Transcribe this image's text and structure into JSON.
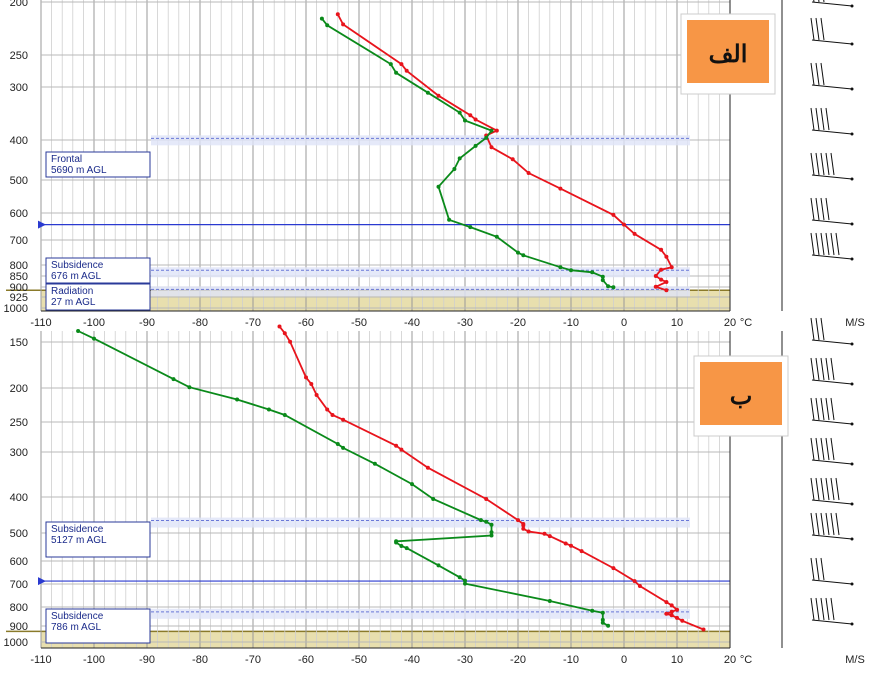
{
  "chart_data": [
    {
      "type": "line",
      "panel_label": "الف",
      "x_unit": "°C",
      "wind_unit": "M/S",
      "xlim": [
        -110,
        20
      ],
      "ylim": [
        1000,
        200
      ],
      "y_scale": "log",
      "x_ticks": [
        "-110",
        "-100",
        "-90",
        "-80",
        "-70",
        "-60",
        "-50",
        "-40",
        "-30",
        "-20",
        "-10",
        "0",
        "10",
        "20"
      ],
      "y_ticks": [
        "200",
        "250",
        "300",
        "400",
        "500",
        "600",
        "700",
        "800",
        "850",
        "900",
        "925",
        "1000"
      ],
      "grid": true,
      "layers": [
        {
          "name": "Frontal",
          "height": "5690 m AGL",
          "pressure": 440
        },
        {
          "name": "Subsidence",
          "height": "676 m AGL",
          "pressure": 830
        },
        {
          "name": "Radiation",
          "height": "27 m AGL",
          "pressure": 910
        }
      ],
      "marker_pressure": 660,
      "series": [
        {
          "color": "#e8141c",
          "points": [
            [
              -60,
              200
            ],
            [
              -59,
              206
            ],
            [
              -54,
              240
            ],
            [
              -53,
              252
            ],
            [
              -42,
              305
            ],
            [
              -41,
              315
            ],
            [
              -35,
              355
            ],
            [
              -29,
              390
            ],
            [
              -28,
              398
            ],
            [
              -24,
              420
            ],
            [
              -26,
              430
            ],
            [
              -25,
              455
            ],
            [
              -21,
              482
            ],
            [
              -18,
              515
            ],
            [
              -12,
              555
            ],
            [
              -2,
              630
            ],
            [
              0,
              660
            ],
            [
              2,
              690
            ],
            [
              7,
              745
            ],
            [
              8,
              770
            ],
            [
              9,
              810
            ],
            [
              7,
              820
            ],
            [
              6,
              845
            ],
            [
              7,
              860
            ],
            [
              8,
              870
            ],
            [
              6,
              890
            ],
            [
              8,
              905
            ]
          ]
        },
        {
          "color": "#0a8a1a",
          "points": [
            [
              -68,
              200
            ],
            [
              -64,
              214
            ],
            [
              -57,
              245
            ],
            [
              -56,
              253
            ],
            [
              -44,
              305
            ],
            [
              -43,
              318
            ],
            [
              -37,
              350
            ],
            [
              -31,
              385
            ],
            [
              -30,
              400
            ],
            [
              -25,
              420
            ],
            [
              -26,
              435
            ],
            [
              -28,
              452
            ],
            [
              -31,
              480
            ],
            [
              -32,
              505
            ],
            [
              -35,
              550
            ],
            [
              -33,
              645
            ],
            [
              -29,
              668
            ],
            [
              -24,
              700
            ],
            [
              -20,
              755
            ],
            [
              -19,
              765
            ],
            [
              -12,
              810
            ],
            [
              -10,
              822
            ],
            [
              -6,
              830
            ],
            [
              -4,
              848
            ],
            [
              -4,
              862
            ],
            [
              -3,
              888
            ],
            [
              -2,
              892
            ]
          ]
        }
      ]
    },
    {
      "type": "line",
      "panel_label": "ب",
      "x_unit": "°C",
      "wind_unit": "M/S",
      "xlim": [
        -110,
        20
      ],
      "ylim": [
        1000,
        150
      ],
      "y_scale": "log",
      "x_ticks": [
        "-110",
        "-100",
        "-90",
        "-80",
        "-70",
        "-60",
        "-50",
        "-40",
        "-30",
        "-20",
        "-10",
        "0",
        "10",
        "20"
      ],
      "y_ticks": [
        "150",
        "200",
        "250",
        "300",
        "400",
        "500",
        "600",
        "700",
        "800",
        "900",
        "1000"
      ],
      "grid": true,
      "layers": [
        {
          "name": "Subsidence",
          "height": "5127 m AGL",
          "pressure": 472
        },
        {
          "name": "Subsidence",
          "height": "786 m AGL",
          "pressure": 815
        }
      ],
      "marker_pressure": 670,
      "series": [
        {
          "color": "#e8141c",
          "points": [
            [
              -65,
              146
            ],
            [
              -64,
              152
            ],
            [
              -63,
              160
            ],
            [
              -60,
              198
            ],
            [
              -59,
              206
            ],
            [
              -58,
              220
            ],
            [
              -56,
              240
            ],
            [
              -55,
              248
            ],
            [
              -53,
              255
            ],
            [
              -43,
              298
            ],
            [
              -42,
              305
            ],
            [
              -37,
              340
            ],
            [
              -26,
              410
            ],
            [
              -20,
              465
            ],
            [
              -19,
              476
            ],
            [
              -19,
              480
            ],
            [
              -19,
              490
            ],
            [
              -18,
              498
            ],
            [
              -15,
              505
            ],
            [
              -14,
              512
            ],
            [
              -11,
              535
            ],
            [
              -10,
              542
            ],
            [
              -8,
              560
            ],
            [
              -2,
              620
            ],
            [
              2,
              670
            ],
            [
              3,
              690
            ],
            [
              8,
              760
            ],
            [
              9,
              775
            ],
            [
              10,
              795
            ],
            [
              9,
              805
            ],
            [
              8,
              815
            ],
            [
              9,
              822
            ],
            [
              10,
              835
            ],
            [
              11,
              850
            ],
            [
              15,
              895
            ]
          ]
        },
        {
          "color": "#0a8a1a",
          "points": [
            [
              -104,
              145
            ],
            [
              -103,
              150
            ],
            [
              -100,
              157
            ],
            [
              -85,
              200
            ],
            [
              -82,
              210
            ],
            [
              -73,
              226
            ],
            [
              -67,
              240
            ],
            [
              -64,
              248
            ],
            [
              -54,
              295
            ],
            [
              -53,
              302
            ],
            [
              -47,
              332
            ],
            [
              -40,
              375
            ],
            [
              -36,
              410
            ],
            [
              -27,
              465
            ],
            [
              -26,
              470
            ],
            [
              -25,
              478
            ],
            [
              -25,
              500
            ],
            [
              -25,
              510
            ],
            [
              -43,
              528
            ],
            [
              -43,
              532
            ],
            [
              -42,
              543
            ],
            [
              -41,
              550
            ],
            [
              -35,
              610
            ],
            [
              -31,
              655
            ],
            [
              -30,
              668
            ],
            [
              -30,
              680
            ],
            [
              -14,
              755
            ],
            [
              -6,
              800
            ],
            [
              -4,
              810
            ],
            [
              -4,
              845
            ],
            [
              -4,
              860
            ],
            [
              -3,
              875
            ]
          ]
        }
      ]
    }
  ]
}
